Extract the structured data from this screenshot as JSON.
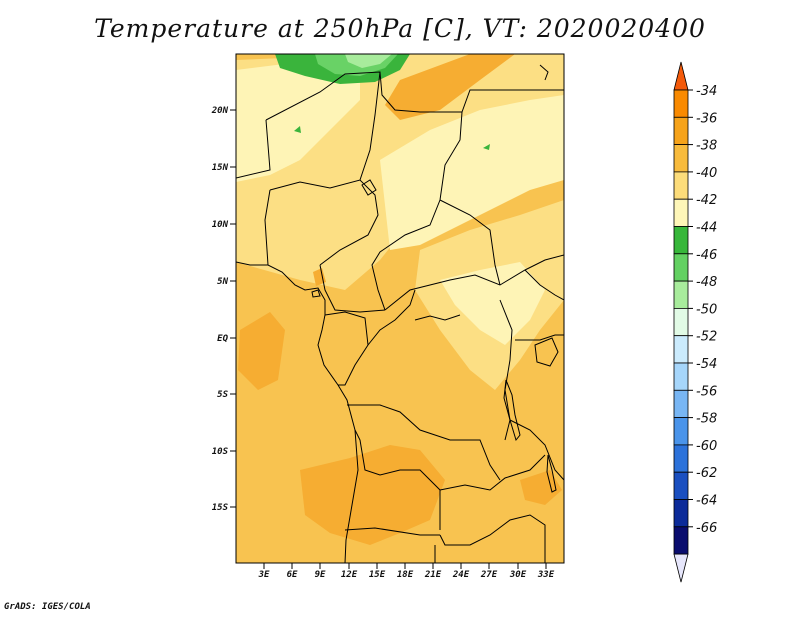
{
  "title": "Temperature at 250hPa [C], VT: 2020020400",
  "footer": "GrADS: IGES/COLA",
  "map": {
    "lat_ticks": [
      "20N",
      "15N",
      "10N",
      "5N",
      "EQ",
      "5S",
      "10S",
      "15S"
    ],
    "lon_ticks": [
      "3E",
      "6E",
      "9E",
      "12E",
      "15E",
      "18E",
      "21E",
      "24E",
      "27E",
      "30E",
      "33E"
    ]
  },
  "colorbar": {
    "labels": [
      "-34",
      "-36",
      "-38",
      "-40",
      "-42",
      "-44",
      "-46",
      "-48",
      "-50",
      "-52",
      "-54",
      "-56",
      "-58",
      "-60",
      "-62",
      "-64",
      "-66"
    ],
    "colors": [
      "#f45a0a",
      "#f98a00",
      "#f6a31a",
      "#f8bb3c",
      "#fcdc7a",
      "#fef6b8",
      "#37b73a",
      "#63d162",
      "#a8ec9c",
      "#e2fbe6",
      "#cbebfd",
      "#a6d6fb",
      "#78b6f4",
      "#4a94ea",
      "#2c72da",
      "#1a4fc0",
      "#0c2b99",
      "#0a0d6e",
      "#e6e6fb"
    ]
  }
}
